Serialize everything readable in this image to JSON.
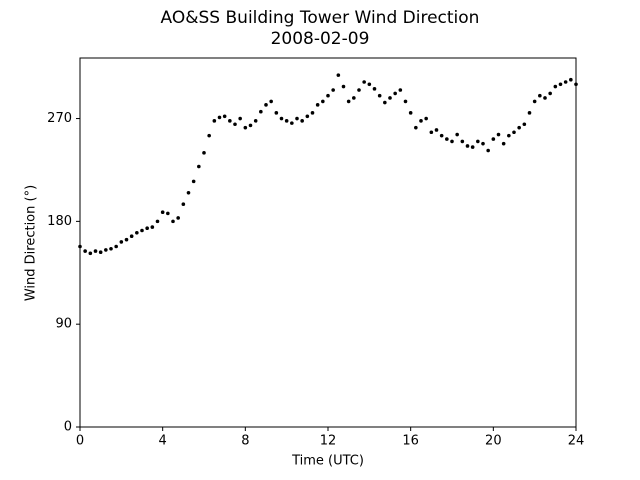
{
  "chart_data": {
    "type": "scatter",
    "title": "AO&SS Building Tower Wind Direction",
    "subtitle": "2008-02-09",
    "x_label": "Time (UTC)",
    "y_label": "Wind Direction (°)",
    "color": "#000000",
    "x": [
      0,
      0.25,
      0.5,
      0.75,
      1,
      1.25,
      1.5,
      1.75,
      2,
      2.25,
      2.5,
      2.75,
      3,
      3.25,
      3.5,
      3.75,
      4,
      4.25,
      4.5,
      4.75,
      5,
      5.25,
      5.5,
      5.75,
      6,
      6.25,
      6.5,
      6.75,
      7,
      7.25,
      7.5,
      7.75,
      8,
      8.25,
      8.5,
      8.75,
      9,
      9.25,
      9.5,
      9.75,
      10,
      10.25,
      10.5,
      10.75,
      11,
      11.25,
      11.5,
      11.75,
      12,
      12.25,
      12.5,
      12.75,
      13,
      13.25,
      13.5,
      13.75,
      14,
      14.25,
      14.5,
      14.75,
      15,
      15.25,
      15.5,
      15.75,
      16,
      16.25,
      16.5,
      16.75,
      17,
      17.25,
      17.5,
      17.75,
      18,
      18.25,
      18.5,
      18.75,
      19,
      19.25,
      19.5,
      19.75,
      20,
      20.25,
      20.5,
      20.75,
      21,
      21.25,
      21.5,
      21.75,
      22,
      22.25,
      22.5,
      22.75,
      23,
      23.25,
      23.5,
      23.75,
      24
    ],
    "values": [
      158,
      154,
      152,
      154,
      153,
      155,
      156,
      158,
      162,
      164,
      167,
      170,
      172,
      174,
      175,
      180,
      188,
      187,
      180,
      183,
      195,
      205,
      215,
      228,
      240,
      255,
      268,
      271,
      272,
      268,
      265,
      270,
      262,
      264,
      268,
      276,
      282,
      285,
      275,
      270,
      268,
      266,
      270,
      268,
      272,
      275,
      282,
      285,
      290,
      295,
      308,
      298,
      285,
      288,
      295,
      302,
      300,
      296,
      290,
      284,
      288,
      292,
      295,
      285,
      275,
      262,
      268,
      270,
      258,
      260,
      255,
      252,
      250,
      256,
      250,
      246,
      245,
      250,
      248,
      242,
      252,
      256,
      248,
      255,
      258,
      262,
      265,
      275,
      285,
      290,
      288,
      292,
      298,
      300,
      302,
      304,
      300
    ],
    "xlim": [
      0,
      24
    ],
    "ylim": [
      0,
      323
    ],
    "xticks": [
      0,
      4,
      8,
      12,
      16,
      20,
      24
    ],
    "yticks": [
      0,
      90,
      180,
      270
    ]
  }
}
